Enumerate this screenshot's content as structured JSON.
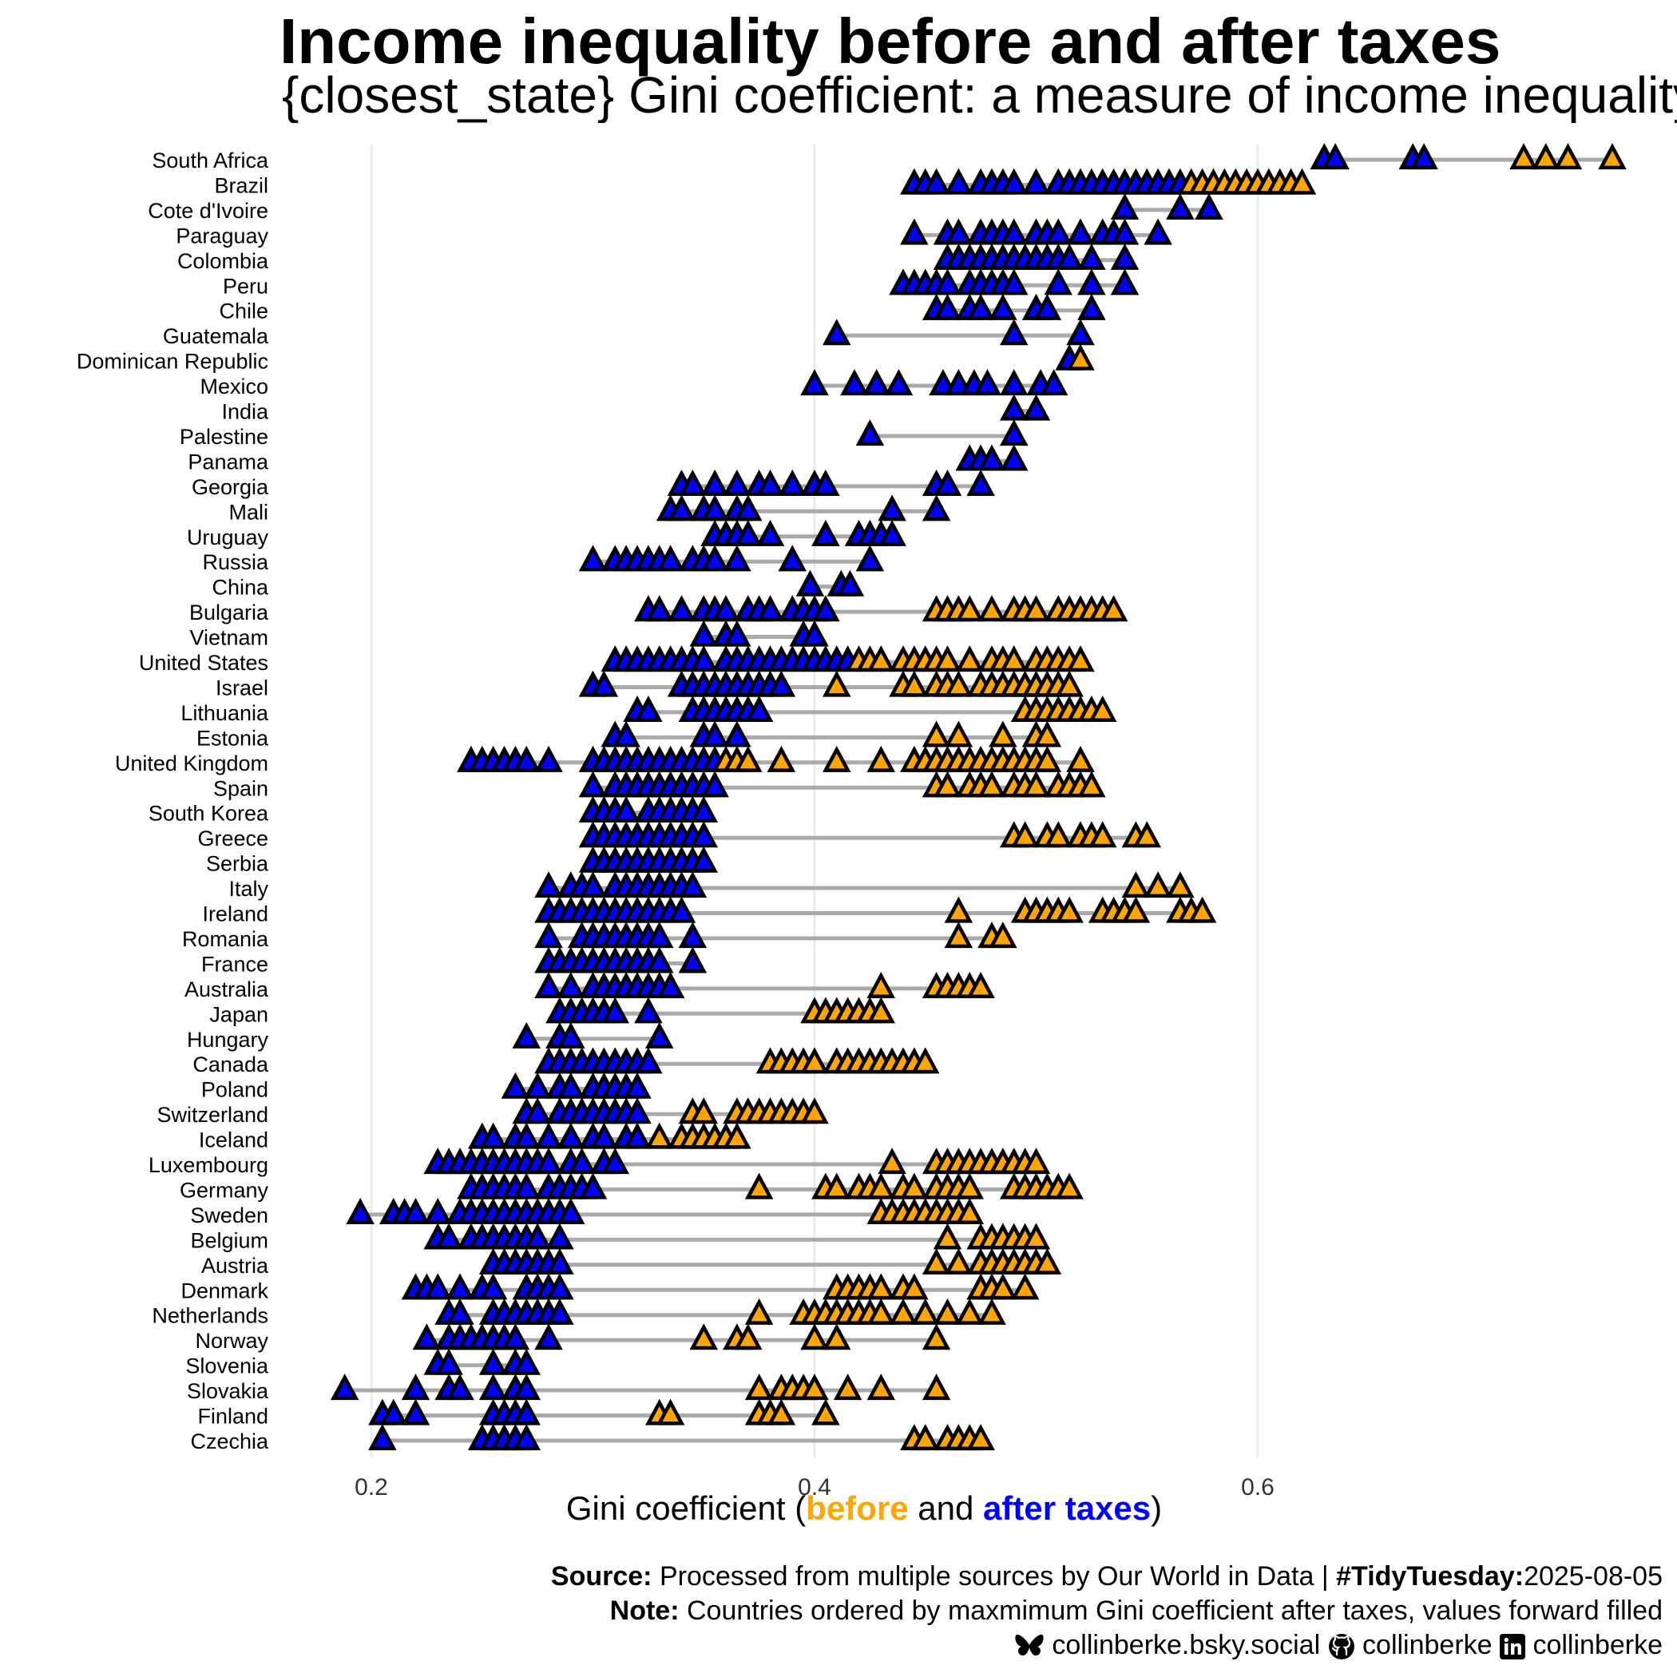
{
  "title": "Income inequality before and after taxes",
  "subtitle": "{closest_state} Gini coefficient: a measure of income inequality",
  "caption": {
    "source_label": "Source:",
    "source_text": "Processed from multiple sources by Our World in Data |",
    "tidy_label": "#TidyTuesday:",
    "tidy_date": "2025-08-05",
    "note_label": "Note:",
    "note_text": "Countries ordered by maxmimum Gini coefficient after taxes, values forward filled",
    "bluesky": "collinberke.bsky.social",
    "github": "collinberke",
    "linkedin": "collinberke",
    "icons": [
      "butterfly-icon",
      "github-icon",
      "linkedin-icon"
    ]
  },
  "colors": {
    "before": "#FFA500",
    "after": "#0000FF",
    "segment": "#AAAAAA",
    "grid": "#EBEBEB"
  },
  "chart_data": {
    "type": "dot-range",
    "xlabel_parts": [
      "Gini coefficient (",
      "before",
      " and ",
      "after taxes",
      ")"
    ],
    "xlim": [
      0.15,
      0.78
    ],
    "xticks": [
      0.2,
      0.4,
      0.6
    ],
    "grid": "vertical major",
    "marker": "triangle",
    "series": [
      {
        "name": "before",
        "color": "#FFA500"
      },
      {
        "name": "after taxes",
        "color": "#0000FF"
      }
    ],
    "rows": [
      {
        "country": "South Africa",
        "before": [
          0.72,
          0.73,
          0.74,
          0.76
        ],
        "after": [
          0.63,
          0.635,
          0.67,
          0.675
        ]
      },
      {
        "country": "Brazil",
        "before": [
          0.57,
          0.575,
          0.58,
          0.585,
          0.59,
          0.595,
          0.6,
          0.605,
          0.61,
          0.615,
          0.62
        ],
        "after": [
          0.445,
          0.45,
          0.455,
          0.465,
          0.475,
          0.48,
          0.485,
          0.49,
          0.5,
          0.51,
          0.515,
          0.52,
          0.525,
          0.53,
          0.535,
          0.54,
          0.545,
          0.55,
          0.555,
          0.56,
          0.565
        ]
      },
      {
        "country": "Cote d'Ivoire",
        "before": [],
        "after": [
          0.54,
          0.565,
          0.578
        ]
      },
      {
        "country": "Paraguay",
        "before": [],
        "after": [
          0.445,
          0.46,
          0.465,
          0.475,
          0.48,
          0.485,
          0.49,
          0.5,
          0.505,
          0.51,
          0.52,
          0.53,
          0.535,
          0.54,
          0.555
        ]
      },
      {
        "country": "Colombia",
        "before": [],
        "after": [
          0.46,
          0.465,
          0.47,
          0.475,
          0.48,
          0.485,
          0.49,
          0.495,
          0.5,
          0.505,
          0.51,
          0.515,
          0.525,
          0.54
        ]
      },
      {
        "country": "Peru",
        "before": [],
        "after": [
          0.44,
          0.445,
          0.45,
          0.455,
          0.46,
          0.47,
          0.475,
          0.48,
          0.485,
          0.49,
          0.51,
          0.525,
          0.54
        ]
      },
      {
        "country": "Chile",
        "before": [],
        "after": [
          0.455,
          0.46,
          0.47,
          0.475,
          0.485,
          0.5,
          0.505,
          0.525
        ]
      },
      {
        "country": "Guatemala",
        "before": [],
        "after": [
          0.41,
          0.49,
          0.52
        ]
      },
      {
        "country": "Dominican Republic",
        "before": [
          0.52
        ],
        "after": [
          0.515
        ]
      },
      {
        "country": "Mexico",
        "before": [],
        "after": [
          0.4,
          0.418,
          0.428,
          0.438,
          0.458,
          0.465,
          0.472,
          0.478,
          0.49,
          0.502,
          0.508
        ]
      },
      {
        "country": "India",
        "before": [],
        "after": [
          0.49,
          0.5
        ]
      },
      {
        "country": "Palestine",
        "before": [],
        "after": [
          0.425,
          0.49
        ]
      },
      {
        "country": "Panama",
        "before": [],
        "after": [
          0.47,
          0.475,
          0.48,
          0.49
        ]
      },
      {
        "country": "Georgia",
        "before": [],
        "after": [
          0.34,
          0.345,
          0.355,
          0.365,
          0.375,
          0.38,
          0.39,
          0.4,
          0.405,
          0.455,
          0.46,
          0.475
        ]
      },
      {
        "country": "Mali",
        "before": [],
        "after": [
          0.335,
          0.34,
          0.35,
          0.355,
          0.365,
          0.37,
          0.435,
          0.455
        ]
      },
      {
        "country": "Uruguay",
        "before": [],
        "after": [
          0.355,
          0.36,
          0.365,
          0.37,
          0.38,
          0.405,
          0.42,
          0.425,
          0.43,
          0.435
        ]
      },
      {
        "country": "Russia",
        "before": [],
        "after": [
          0.3,
          0.31,
          0.315,
          0.32,
          0.325,
          0.33,
          0.335,
          0.345,
          0.35,
          0.355,
          0.365,
          0.39,
          0.425
        ]
      },
      {
        "country": "China",
        "before": [],
        "after": [
          0.398,
          0.412,
          0.416
        ]
      },
      {
        "country": "Bulgaria",
        "before": [
          0.455,
          0.46,
          0.465,
          0.47,
          0.48,
          0.49,
          0.495,
          0.5,
          0.51,
          0.515,
          0.52,
          0.525,
          0.53,
          0.535
        ],
        "after": [
          0.325,
          0.33,
          0.34,
          0.35,
          0.355,
          0.36,
          0.37,
          0.375,
          0.38,
          0.39,
          0.395,
          0.4,
          0.405
        ]
      },
      {
        "country": "Vietnam",
        "before": [],
        "after": [
          0.35,
          0.36,
          0.365,
          0.395,
          0.4
        ]
      },
      {
        "country": "United States",
        "before": [
          0.42,
          0.425,
          0.43,
          0.44,
          0.445,
          0.45,
          0.455,
          0.46,
          0.47,
          0.48,
          0.485,
          0.49,
          0.5,
          0.505,
          0.51,
          0.515,
          0.52
        ],
        "after": [
          0.31,
          0.315,
          0.32,
          0.325,
          0.33,
          0.335,
          0.34,
          0.345,
          0.35,
          0.36,
          0.365,
          0.37,
          0.375,
          0.38,
          0.385,
          0.39,
          0.395,
          0.4,
          0.405,
          0.41,
          0.415
        ]
      },
      {
        "country": "Israel",
        "before": [
          0.41,
          0.44,
          0.445,
          0.455,
          0.46,
          0.465,
          0.475,
          0.48,
          0.485,
          0.49,
          0.495,
          0.5,
          0.505,
          0.51,
          0.515
        ],
        "after": [
          0.3,
          0.305,
          0.34,
          0.345,
          0.35,
          0.355,
          0.36,
          0.365,
          0.37,
          0.375,
          0.38,
          0.385
        ]
      },
      {
        "country": "Lithuania",
        "before": [
          0.495,
          0.5,
          0.505,
          0.51,
          0.515,
          0.52,
          0.525,
          0.53
        ],
        "after": [
          0.32,
          0.325,
          0.345,
          0.35,
          0.355,
          0.36,
          0.365,
          0.37,
          0.375
        ]
      },
      {
        "country": "Estonia",
        "before": [
          0.455,
          0.465,
          0.485,
          0.5,
          0.505
        ],
        "after": [
          0.31,
          0.315,
          0.35,
          0.355,
          0.365
        ]
      },
      {
        "country": "United Kingdom",
        "before": [
          0.36,
          0.365,
          0.37,
          0.385,
          0.41,
          0.43,
          0.445,
          0.45,
          0.455,
          0.46,
          0.465,
          0.47,
          0.475,
          0.48,
          0.485,
          0.49,
          0.495,
          0.5,
          0.505,
          0.52
        ],
        "after": [
          0.245,
          0.25,
          0.255,
          0.26,
          0.265,
          0.27,
          0.28,
          0.3,
          0.305,
          0.31,
          0.315,
          0.32,
          0.325,
          0.33,
          0.335,
          0.34,
          0.345,
          0.35,
          0.355
        ]
      },
      {
        "country": "Spain",
        "before": [
          0.455,
          0.46,
          0.47,
          0.475,
          0.48,
          0.49,
          0.495,
          0.5,
          0.51,
          0.515,
          0.52,
          0.525
        ],
        "after": [
          0.3,
          0.31,
          0.315,
          0.32,
          0.325,
          0.33,
          0.335,
          0.34,
          0.345,
          0.35,
          0.355
        ]
      },
      {
        "country": "South Korea",
        "before": [],
        "after": [
          0.3,
          0.305,
          0.31,
          0.315,
          0.325,
          0.33,
          0.335,
          0.34,
          0.345,
          0.35
        ]
      },
      {
        "country": "Greece",
        "before": [
          0.49,
          0.495,
          0.505,
          0.51,
          0.52,
          0.525,
          0.53,
          0.545,
          0.55
        ],
        "after": [
          0.3,
          0.305,
          0.31,
          0.315,
          0.32,
          0.325,
          0.33,
          0.335,
          0.34,
          0.345,
          0.35
        ]
      },
      {
        "country": "Serbia",
        "before": [],
        "after": [
          0.3,
          0.305,
          0.31,
          0.315,
          0.32,
          0.325,
          0.33,
          0.335,
          0.34,
          0.345,
          0.35
        ]
      },
      {
        "country": "Italy",
        "before": [
          0.545,
          0.555,
          0.565
        ],
        "after": [
          0.28,
          0.29,
          0.295,
          0.3,
          0.31,
          0.315,
          0.32,
          0.325,
          0.33,
          0.335,
          0.34,
          0.345
        ]
      },
      {
        "country": "Ireland",
        "before": [
          0.465,
          0.495,
          0.5,
          0.505,
          0.51,
          0.515,
          0.53,
          0.535,
          0.54,
          0.545,
          0.565,
          0.57,
          0.575
        ],
        "after": [
          0.28,
          0.285,
          0.29,
          0.295,
          0.3,
          0.305,
          0.31,
          0.315,
          0.32,
          0.325,
          0.33,
          0.335,
          0.34
        ]
      },
      {
        "country": "Romania",
        "before": [
          0.465,
          0.48,
          0.485
        ],
        "after": [
          0.28,
          0.295,
          0.3,
          0.305,
          0.31,
          0.315,
          0.32,
          0.325,
          0.33,
          0.345
        ]
      },
      {
        "country": "France",
        "before": [],
        "after": [
          0.28,
          0.285,
          0.29,
          0.295,
          0.3,
          0.305,
          0.31,
          0.315,
          0.32,
          0.325,
          0.33,
          0.345
        ]
      },
      {
        "country": "Australia",
        "before": [
          0.43,
          0.455,
          0.46,
          0.465,
          0.47,
          0.475
        ],
        "after": [
          0.28,
          0.29,
          0.3,
          0.305,
          0.31,
          0.315,
          0.32,
          0.325,
          0.33,
          0.335
        ]
      },
      {
        "country": "Japan",
        "before": [
          0.4,
          0.405,
          0.41,
          0.415,
          0.42,
          0.425,
          0.43
        ],
        "after": [
          0.285,
          0.29,
          0.295,
          0.3,
          0.305,
          0.31,
          0.325
        ]
      },
      {
        "country": "Hungary",
        "before": [],
        "after": [
          0.27,
          0.285,
          0.29,
          0.33
        ]
      },
      {
        "country": "Canada",
        "before": [
          0.38,
          0.385,
          0.39,
          0.395,
          0.4,
          0.41,
          0.415,
          0.42,
          0.425,
          0.43,
          0.435,
          0.44,
          0.445,
          0.45
        ],
        "after": [
          0.28,
          0.285,
          0.29,
          0.295,
          0.3,
          0.305,
          0.31,
          0.315,
          0.32,
          0.325
        ]
      },
      {
        "country": "Poland",
        "before": [],
        "after": [
          0.265,
          0.275,
          0.285,
          0.29,
          0.3,
          0.305,
          0.31,
          0.315,
          0.32
        ]
      },
      {
        "country": "Switzerland",
        "before": [
          0.345,
          0.35,
          0.365,
          0.37,
          0.375,
          0.38,
          0.385,
          0.39,
          0.395,
          0.4
        ],
        "after": [
          0.27,
          0.275,
          0.285,
          0.29,
          0.295,
          0.3,
          0.305,
          0.31,
          0.315,
          0.32
        ]
      },
      {
        "country": "Iceland",
        "before": [
          0.33,
          0.34,
          0.345,
          0.35,
          0.355,
          0.36,
          0.365
        ],
        "after": [
          0.25,
          0.255,
          0.265,
          0.27,
          0.28,
          0.29,
          0.3,
          0.305,
          0.315,
          0.32
        ]
      },
      {
        "country": "Luxembourg",
        "before": [
          0.435,
          0.455,
          0.46,
          0.465,
          0.47,
          0.475,
          0.48,
          0.485,
          0.49,
          0.495,
          0.5
        ],
        "after": [
          0.23,
          0.235,
          0.24,
          0.245,
          0.25,
          0.255,
          0.26,
          0.265,
          0.27,
          0.275,
          0.28,
          0.29,
          0.295,
          0.305,
          0.31
        ]
      },
      {
        "country": "Germany",
        "before": [
          0.375,
          0.405,
          0.41,
          0.42,
          0.425,
          0.43,
          0.44,
          0.445,
          0.455,
          0.46,
          0.465,
          0.47,
          0.49,
          0.495,
          0.5,
          0.505,
          0.51,
          0.515
        ],
        "after": [
          0.245,
          0.25,
          0.255,
          0.26,
          0.265,
          0.27,
          0.28,
          0.285,
          0.29,
          0.295,
          0.3
        ]
      },
      {
        "country": "Sweden",
        "before": [
          0.43,
          0.435,
          0.44,
          0.445,
          0.45,
          0.455,
          0.46,
          0.465,
          0.47
        ],
        "after": [
          0.195,
          0.21,
          0.215,
          0.22,
          0.23,
          0.24,
          0.245,
          0.25,
          0.255,
          0.26,
          0.265,
          0.27,
          0.275,
          0.28,
          0.285,
          0.29
        ]
      },
      {
        "country": "Belgium",
        "before": [
          0.46,
          0.475,
          0.48,
          0.485,
          0.49,
          0.495,
          0.5
        ],
        "after": [
          0.23,
          0.235,
          0.245,
          0.25,
          0.255,
          0.26,
          0.265,
          0.27,
          0.275,
          0.285
        ]
      },
      {
        "country": "Austria",
        "before": [
          0.455,
          0.465,
          0.475,
          0.48,
          0.485,
          0.49,
          0.495,
          0.5,
          0.505
        ],
        "after": [
          0.255,
          0.26,
          0.265,
          0.27,
          0.275,
          0.28,
          0.285
        ]
      },
      {
        "country": "Denmark",
        "before": [
          0.41,
          0.415,
          0.42,
          0.425,
          0.43,
          0.44,
          0.445,
          0.475,
          0.48,
          0.485,
          0.495
        ],
        "after": [
          0.22,
          0.225,
          0.23,
          0.24,
          0.25,
          0.255,
          0.27,
          0.275,
          0.28,
          0.285
        ]
      },
      {
        "country": "Netherlands",
        "before": [
          0.375,
          0.395,
          0.4,
          0.405,
          0.41,
          0.415,
          0.42,
          0.425,
          0.43,
          0.44,
          0.45,
          0.46,
          0.47,
          0.48
        ],
        "after": [
          0.235,
          0.24,
          0.255,
          0.26,
          0.265,
          0.27,
          0.275,
          0.28,
          0.285
        ]
      },
      {
        "country": "Norway",
        "before": [
          0.35,
          0.365,
          0.37,
          0.4,
          0.41,
          0.455
        ],
        "after": [
          0.225,
          0.235,
          0.24,
          0.245,
          0.25,
          0.255,
          0.26,
          0.265,
          0.28
        ]
      },
      {
        "country": "Slovenia",
        "before": [],
        "after": [
          0.23,
          0.235,
          0.255,
          0.265,
          0.27
        ]
      },
      {
        "country": "Slovakia",
        "before": [
          0.375,
          0.385,
          0.39,
          0.395,
          0.4,
          0.415,
          0.43,
          0.455
        ],
        "after": [
          0.188,
          0.22,
          0.235,
          0.24,
          0.255,
          0.265,
          0.27
        ]
      },
      {
        "country": "Finland",
        "before": [
          0.33,
          0.335,
          0.375,
          0.38,
          0.385,
          0.405
        ],
        "after": [
          0.205,
          0.21,
          0.22,
          0.255,
          0.26,
          0.265,
          0.27
        ]
      },
      {
        "country": "Czechia",
        "before": [
          0.445,
          0.45,
          0.46,
          0.465,
          0.47,
          0.475
        ],
        "after": [
          0.205,
          0.25,
          0.255,
          0.26,
          0.265,
          0.27
        ]
      }
    ]
  }
}
